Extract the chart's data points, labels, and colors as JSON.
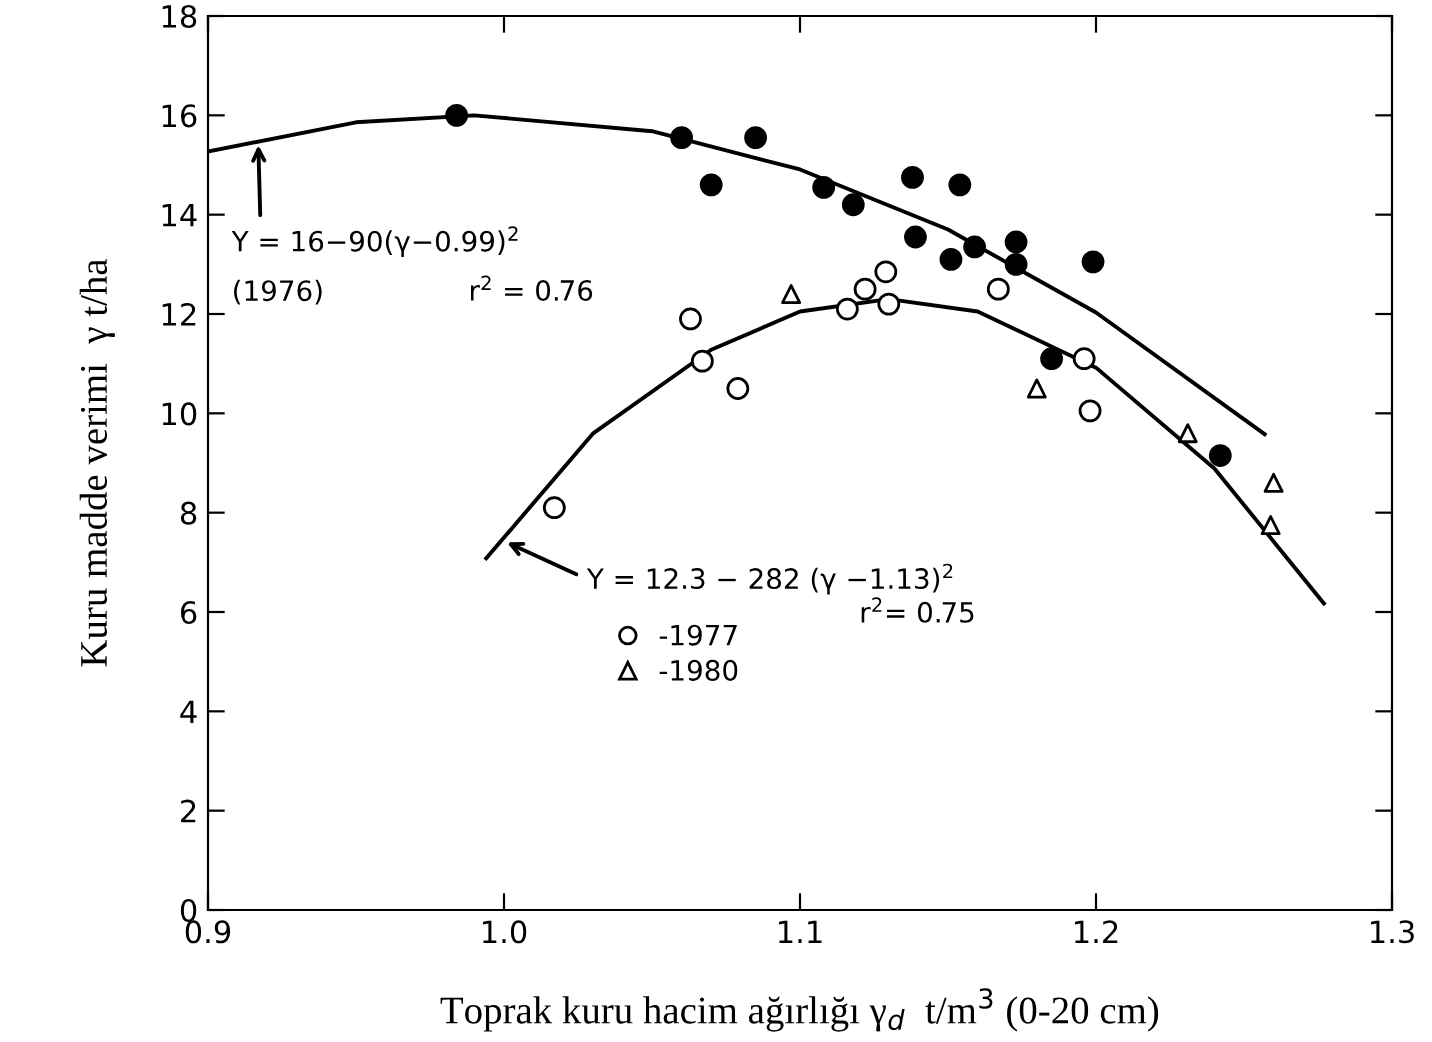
{
  "chart_data": {
    "type": "scatter",
    "xlabel": "Toprak kuru hacim ağırlığı γ$_{d}$  t/m$^{3}$ (0-20 cm)",
    "ylabel": "Kuru madde verimi  γ t/ha",
    "xlim": [
      0.9,
      1.3
    ],
    "xticks": [
      0.9,
      {
        "value": 1.0,
        "label": "1.0"
      },
      1.1,
      1.2,
      1.3
    ],
    "ylim": [
      0,
      18
    ],
    "yticks": [
      0,
      2,
      4,
      6,
      8,
      10,
      12,
      14,
      16,
      18
    ],
    "grid": false,
    "legend": "center left",
    "series": [
      {
        "color": "#000000",
        "marker": "circle",
        "x": [
          0.984,
          1.06,
          1.085,
          1.07,
          1.108,
          1.118,
          1.138,
          1.154,
          1.139,
          1.151,
          1.159,
          1.173,
          1.173,
          1.199,
          1.185,
          1.242
        ],
        "values": [
          16.0,
          15.55,
          15.55,
          14.6,
          14.55,
          14.2,
          14.75,
          14.6,
          13.55,
          13.1,
          13.35,
          13.45,
          13.0,
          13.05,
          11.1,
          9.15
        ]
      },
      {
        "name": "-1977",
        "color": "#ffffff",
        "marker": "circle",
        "x": [
          1.017,
          1.063,
          1.067,
          1.079,
          1.116,
          1.122,
          1.129,
          1.13,
          1.167,
          1.196,
          1.198
        ],
        "values": [
          8.1,
          11.9,
          11.05,
          10.5,
          12.1,
          12.5,
          12.85,
          12.2,
          12.5,
          11.1,
          10.05
        ]
      },
      {
        "name": "-1980",
        "color": "#ffffff",
        "marker": "triangle",
        "x": [
          1.097,
          1.18,
          1.231,
          1.26,
          1.259
        ],
        "values": [
          12.4,
          10.5,
          9.6,
          8.6,
          7.75
        ]
      },
      {
        "type": "line",
        "color": "#000000",
        "marker": "none",
        "line_style": "solid",
        "x": [
          0.9,
          0.95,
          0.99,
          1.05,
          1.1,
          1.15,
          1.2,
          1.257
        ],
        "values": [
          15.27,
          15.86,
          16.0,
          15.68,
          14.91,
          13.7,
          12.03,
          9.58
        ]
      },
      {
        "type": "line",
        "color": "#000000",
        "marker": "none",
        "line_style": "solid",
        "x": [
          0.994,
          1.03,
          1.07,
          1.1,
          1.13,
          1.16,
          1.2,
          1.24,
          1.277
        ],
        "values": [
          7.08,
          9.59,
          11.28,
          12.05,
          12.3,
          12.05,
          10.92,
          8.89,
          6.17
        ]
      }
    ],
    "annotations": [
      {
        "text": "Y = 16−90(γ−0.99)$^{2}$",
        "x": 0.917,
        "y": 15.4
      },
      "(1976)",
      "r$^{2}$ = 0.76",
      {
        "text": "Y = 12.3 − 282 (γ −1.13)$^{2}$",
        "x": 1.001,
        "y": 7.4
      },
      "r$^{2}$= 0.75"
    ]
  }
}
